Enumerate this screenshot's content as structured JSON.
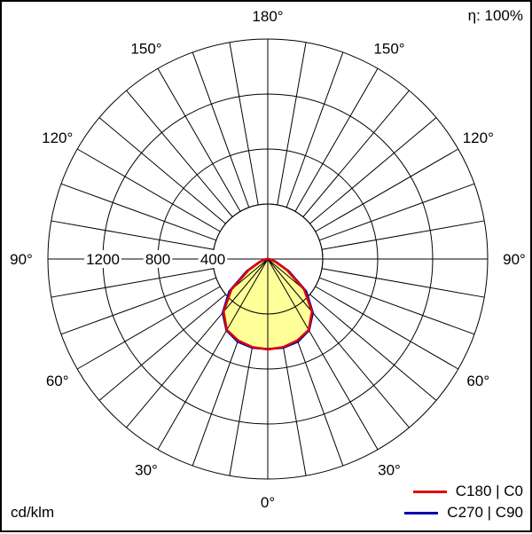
{
  "efficiency": "η: 100%",
  "unit": "cd/klm",
  "chart_data": {
    "type": "polar",
    "radial_max": 1600,
    "radial_ticks": [
      {
        "value": 400,
        "label": "400"
      },
      {
        "value": 800,
        "label": "800"
      },
      {
        "value": 1200,
        "label": "1200"
      },
      {
        "value": 1600,
        "label": ""
      }
    ],
    "angle_labels": [
      {
        "angle": 0,
        "side": "center",
        "label": "0°"
      },
      {
        "angle": 30,
        "side": "left",
        "label": "30°"
      },
      {
        "angle": 30,
        "side": "right",
        "label": "30°"
      },
      {
        "angle": 60,
        "side": "left",
        "label": "60°"
      },
      {
        "angle": 60,
        "side": "right",
        "label": "60°"
      },
      {
        "angle": 90,
        "side": "left",
        "label": "90°"
      },
      {
        "angle": 90,
        "side": "right",
        "label": "90°"
      },
      {
        "angle": 120,
        "side": "left",
        "label": "120°"
      },
      {
        "angle": 120,
        "side": "right",
        "label": "120°"
      },
      {
        "angle": 150,
        "side": "left",
        "label": "150°"
      },
      {
        "angle": 150,
        "side": "right",
        "label": "150°"
      },
      {
        "angle": 180,
        "side": "center",
        "label": "180°"
      }
    ],
    "fill_color": "#ffff99",
    "series": [
      {
        "name": "C180 | C0",
        "color": "#e00000",
        "angles": [
          0,
          10,
          20,
          30,
          40,
          50,
          60,
          70,
          80,
          90
        ],
        "left": [
          658,
          650,
          630,
          595,
          500,
          345,
          160,
          60,
          20,
          0
        ],
        "right": [
          658,
          650,
          630,
          595,
          500,
          345,
          160,
          60,
          20,
          0
        ]
      },
      {
        "name": "C270 | C90",
        "color": "#0000b0",
        "angles": [
          0,
          10,
          20,
          30,
          40,
          50,
          60,
          70,
          80,
          90
        ],
        "left": [
          655,
          655,
          640,
          600,
          510,
          365,
          175,
          65,
          22,
          0
        ],
        "right": [
          655,
          655,
          640,
          600,
          510,
          365,
          175,
          65,
          22,
          0
        ]
      }
    ]
  }
}
